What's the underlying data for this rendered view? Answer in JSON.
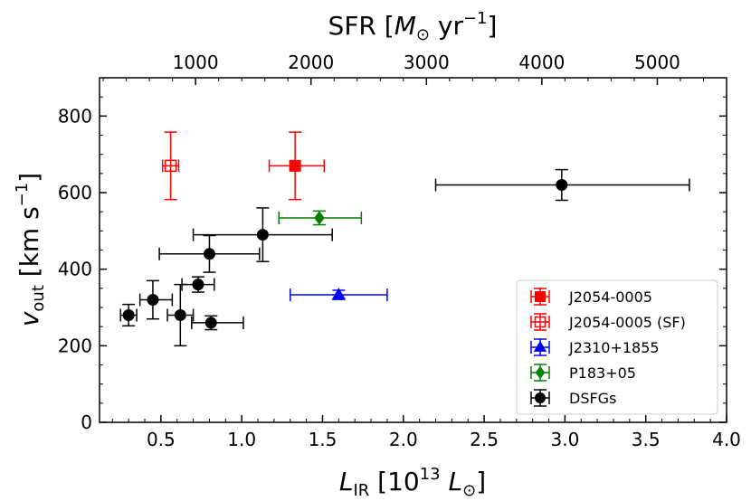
{
  "chart_data": {
    "type": "scatter",
    "xlabel": {
      "main": "L",
      "sub": "IR",
      "rest": " [10",
      "sup": "13",
      "unit": " L",
      "unitsub": "⊙",
      "close": "]"
    },
    "ylabel": {
      "main": "v",
      "sub": "out",
      "rest": " [km s",
      "sup": "−1",
      "close": "]"
    },
    "x2label": {
      "prefix": "SFR [",
      "unit": "M",
      "unitsub": "⊙",
      "mid": " yr",
      "sup": "−1",
      "close": "]"
    },
    "xlim": [
      0.12,
      4.0
    ],
    "ylim": [
      0,
      900
    ],
    "x2_scale": 1400,
    "xticks": [
      0.5,
      1.0,
      1.5,
      2.0,
      2.5,
      3.0,
      3.5,
      4.0
    ],
    "xtick_labels": [
      "0.5",
      "1.0",
      "1.5",
      "2.0",
      "2.5",
      "3.0",
      "3.5",
      "4.0"
    ],
    "yticks": [
      0,
      200,
      400,
      600,
      800
    ],
    "ytick_labels": [
      "0",
      "200",
      "400",
      "600",
      "800"
    ],
    "x2ticks": [
      1000,
      2000,
      3000,
      4000,
      5000
    ],
    "x2tick_labels": [
      "1000",
      "2000",
      "3000",
      "4000",
      "5000"
    ],
    "legend_position": "lower-right",
    "series": [
      {
        "name": "J2054-0005",
        "color": "#ff0000",
        "marker": "square",
        "filled": true,
        "points": [
          {
            "x": 1.33,
            "y": 670,
            "xerr": [
              0.16,
              0.18
            ],
            "yerr": [
              88,
              88
            ]
          }
        ]
      },
      {
        "name": "J2054-0005 (SF)",
        "color": "#ff0000",
        "marker": "square",
        "filled": false,
        "points": [
          {
            "x": 0.56,
            "y": 670,
            "xerr": [
              0.05,
              0.05
            ],
            "yerr": [
              88,
              88
            ]
          }
        ]
      },
      {
        "name": "J2310+1855",
        "color": "#0000ff",
        "marker": "triangle",
        "filled": true,
        "points": [
          {
            "x": 1.6,
            "y": 333,
            "xerr": [
              0.3,
              0.3
            ],
            "yerr": [
              12,
              12
            ]
          }
        ]
      },
      {
        "name": "P183+05",
        "color": "#008000",
        "marker": "diamond",
        "filled": true,
        "points": [
          {
            "x": 1.48,
            "y": 534,
            "xerr": [
              0.25,
              0.26
            ],
            "yerr": [
              18,
              18
            ]
          }
        ]
      },
      {
        "name": "DSFGs",
        "color": "#000000",
        "marker": "circle",
        "filled": true,
        "points": [
          {
            "x": 0.3,
            "y": 280,
            "xerr": [
              0.05,
              0.05
            ],
            "yerr": [
              28,
              28
            ]
          },
          {
            "x": 0.45,
            "y": 320,
            "xerr": [
              0.08,
              0.12
            ],
            "yerr": [
              50,
              50
            ]
          },
          {
            "x": 0.62,
            "y": 280,
            "xerr": [
              0.08,
              0.08
            ],
            "yerr": [
              80,
              80
            ]
          },
          {
            "x": 0.73,
            "y": 360,
            "xerr": [
              0.1,
              0.1
            ],
            "yerr": [
              20,
              20
            ]
          },
          {
            "x": 0.81,
            "y": 260,
            "xerr": [
              0.12,
              0.2
            ],
            "yerr": [
              18,
              18
            ]
          },
          {
            "x": 0.8,
            "y": 440,
            "xerr": [
              0.31,
              0.31
            ],
            "yerr": [
              48,
              48
            ]
          },
          {
            "x": 1.13,
            "y": 490,
            "xerr": [
              0.43,
              0.43
            ],
            "yerr": [
              70,
              70
            ]
          },
          {
            "x": 2.98,
            "y": 620,
            "xerr": [
              0.78,
              0.79
            ],
            "yerr": [
              40,
              40
            ]
          }
        ]
      }
    ]
  }
}
